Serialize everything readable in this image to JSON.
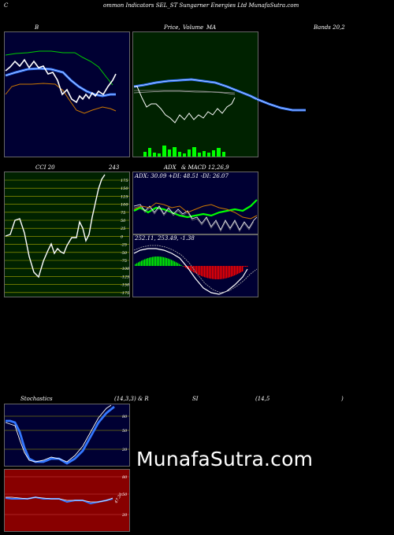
{
  "header": {
    "c_label": "C",
    "title_text": "ommon Indicators SEL_ST Sungarner Energies Ltd MunafaSutra.com"
  },
  "row1": {
    "b_label": "B",
    "price_label": "Price,",
    "volume_label": "Volume",
    "ma_label": "MA",
    "bands_label": "Bands 20,2"
  },
  "row2": {
    "cci_label": "CCI 20",
    "cci_value": "243",
    "adx_label": "ADX",
    "macd_label": "& MACD 12,26,9",
    "adx_readout": "ADX: 30.09 +DI: 48.51 -DI: 26.07",
    "macd_readout": "252.11,  253.49,  -1.38",
    "cci_ticks": [
      "175",
      "150",
      "125",
      "100",
      "75",
      "50",
      "25",
      "0",
      "-25",
      "-50",
      "-75",
      "-100",
      "-125",
      "-150",
      "-175"
    ]
  },
  "row3": {
    "stoch_label": "Stochastics",
    "stoch_params": "(14,3,3) & R",
    "si_label": "SI",
    "rsi_params": "(14,5",
    "close_paren": ")",
    "stoch_ticks": [
      "80",
      "50",
      "20"
    ],
    "rsi_ticks": [
      "80",
      "50",
      "20"
    ],
    "rsi_value": "47.36"
  },
  "watermark": "MunafaSutra.com",
  "colors": {
    "navy": "#000033",
    "dark_green": "#002200",
    "dark_red": "#880000",
    "bright_green": "#00ff00",
    "blue": "#3377ff",
    "orange": "#cc7700",
    "red": "#ff0000"
  }
}
